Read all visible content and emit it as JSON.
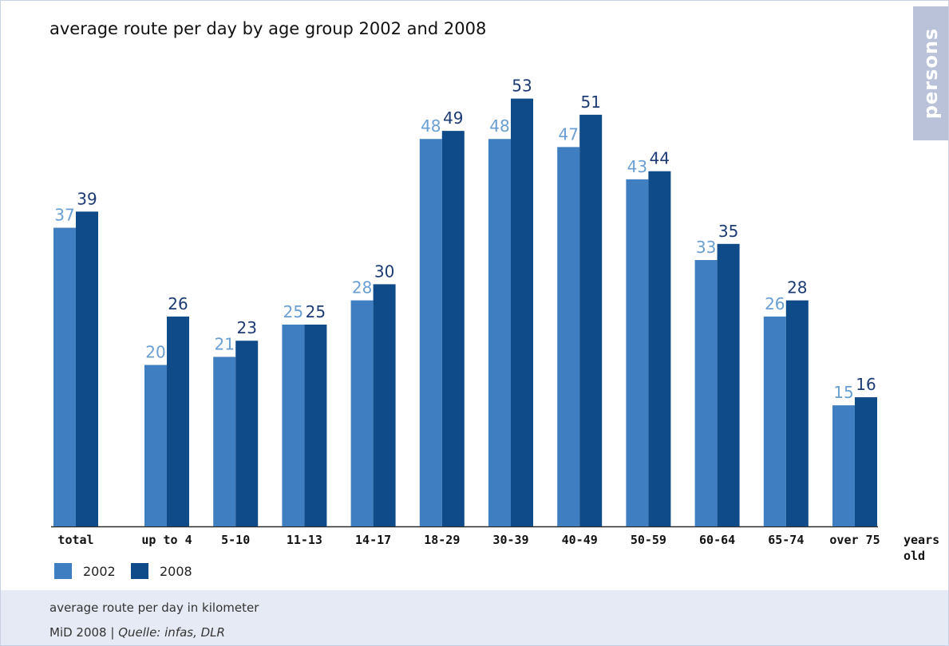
{
  "chart_data": {
    "type": "bar",
    "title": "average route per day by age group 2002 and 2008",
    "categories": [
      "total",
      "up to 4",
      "5-10",
      "11-13",
      "14-17",
      "18-29",
      "30-39",
      "40-49",
      "50-59",
      "60-64",
      "65-74",
      "over 75"
    ],
    "series": [
      {
        "name": "2002",
        "values": [
          37,
          20,
          21,
          25,
          28,
          48,
          48,
          47,
          43,
          33,
          26,
          15
        ],
        "color": "#3f7fc1",
        "label_color": "#6a9fd3"
      },
      {
        "name": "2008",
        "values": [
          39,
          26,
          23,
          25,
          30,
          49,
          53,
          51,
          44,
          35,
          28,
          16
        ],
        "color": "#0f4b88",
        "label_color": "#1d3b74"
      }
    ],
    "xlabel": "years old",
    "ylabel": "",
    "ylim": [
      0,
      56
    ],
    "grid": false,
    "legend_placement": "bottom-left"
  },
  "side_tab": "persons",
  "footnote": "average route per day in kilometer",
  "source": {
    "prefix": "MiD 2008 | ",
    "italic": "Quelle: infas, DLR"
  },
  "xlabel_lines": [
    "years",
    "old"
  ]
}
